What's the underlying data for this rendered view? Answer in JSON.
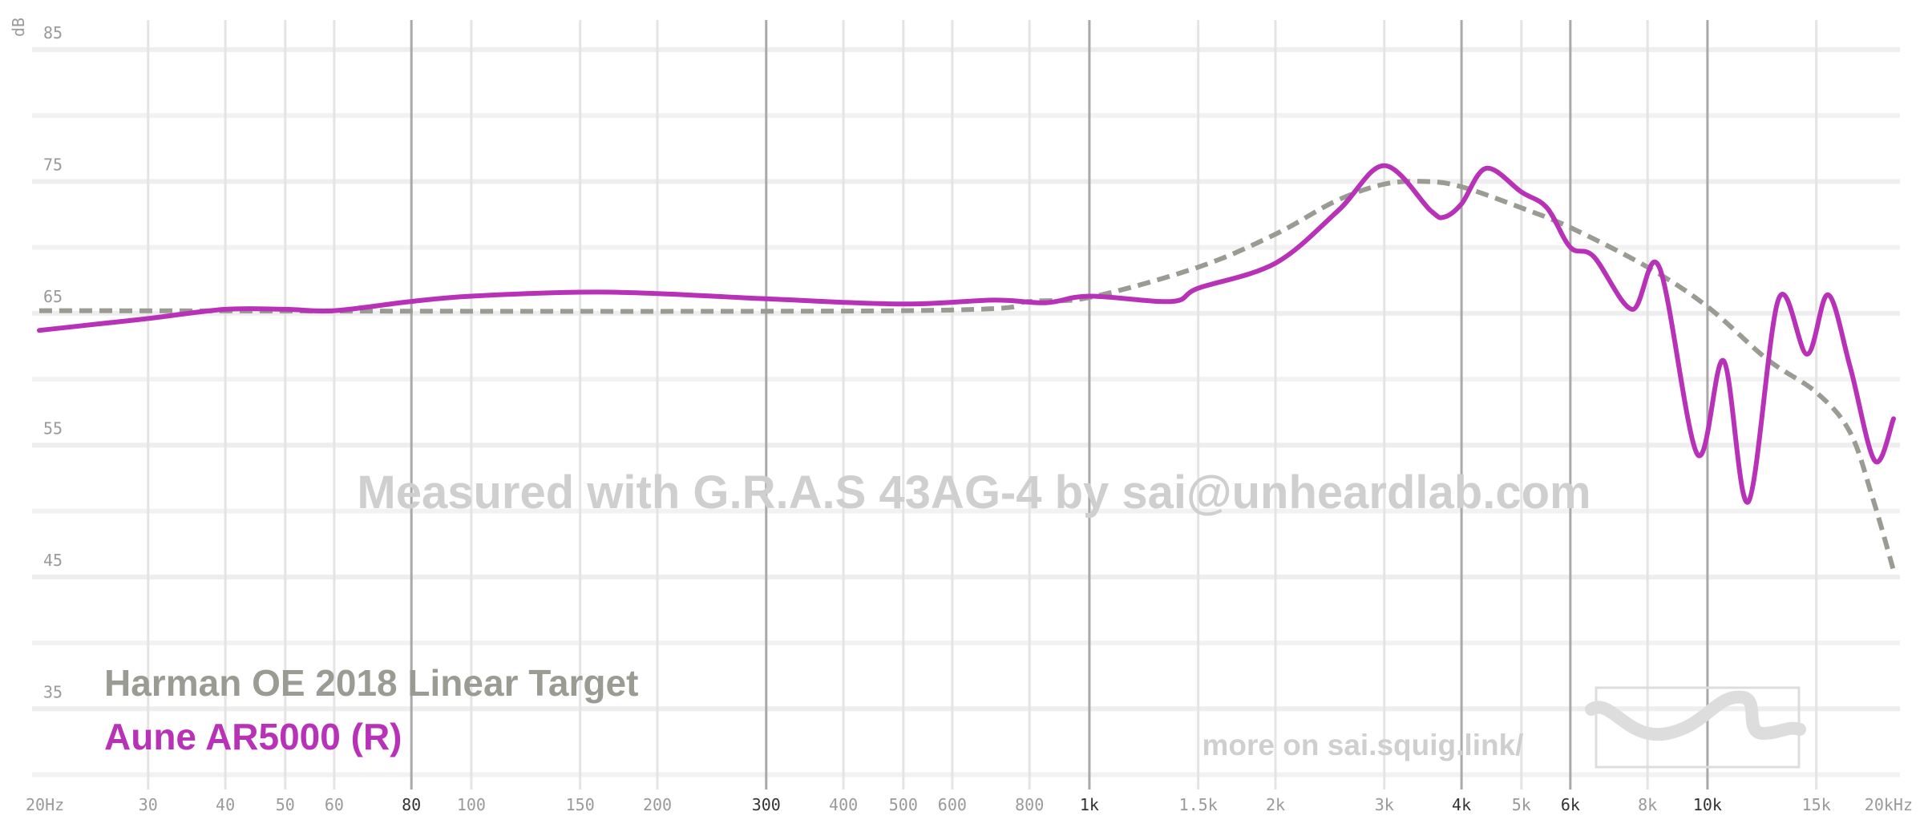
{
  "chart_data": {
    "type": "line",
    "y_label": "dB",
    "x_log": true,
    "xlim": [
      20,
      20000
    ],
    "ylim": [
      29,
      87
    ],
    "yticks": [
      85,
      75,
      65,
      55,
      45,
      35
    ],
    "yminor": [
      80,
      70,
      60,
      50,
      40,
      30
    ],
    "xticks": [
      {
        "value": 20,
        "label": "20Hz"
      },
      30,
      40,
      50,
      60,
      80,
      100,
      150,
      200,
      300,
      400,
      500,
      600,
      800,
      {
        "value": 1000,
        "label": "1k"
      },
      {
        "value": 1500,
        "label": "1.5k"
      },
      {
        "value": 2000,
        "label": "2k"
      },
      {
        "value": 3000,
        "label": "3k"
      },
      {
        "value": 4000,
        "label": "4k"
      },
      {
        "value": 5000,
        "label": "5k"
      },
      {
        "value": 6000,
        "label": "6k"
      },
      {
        "value": 8000,
        "label": "8k"
      },
      {
        "value": 10000,
        "label": "10k"
      },
      {
        "value": 15000,
        "label": "15k"
      },
      {
        "value": 20000,
        "label": "20kHz"
      }
    ],
    "xticks_emphasis": [
      80,
      300,
      1000,
      4000,
      6000,
      10000
    ],
    "grid": true,
    "watermark": "Measured with G.R.A.S 43AG-4 by sai@unheardlab.com",
    "link_text": "more on sai.squig.link/",
    "series": [
      {
        "name": "Harman OE 2018 Linear Target",
        "color": "#9a9c94",
        "dashed": true,
        "x": [
          20,
          500,
          800,
          1000,
          1500,
          2000,
          2500,
          3000,
          3500,
          4000,
          5000,
          6000,
          8000,
          10000,
          12500,
          15000,
          17000,
          18500,
          20000
        ],
        "values": [
          65.2,
          65.2,
          65.9,
          66.2,
          68.5,
          71.0,
          73.5,
          74.8,
          75.0,
          74.6,
          73.0,
          71.5,
          68.5,
          65.5,
          61.5,
          59.0,
          56.0,
          51.0,
          45.5
        ]
      },
      {
        "name": "Aune AR5000 (R)",
        "color": "#b832b8",
        "dashed": false,
        "x": [
          20,
          25,
          30,
          40,
          50,
          60,
          80,
          100,
          150,
          200,
          300,
          500,
          700,
          850,
          1000,
          1358,
          1500,
          2000,
          2528,
          3000,
          3564,
          3750,
          4000,
          4386,
          5000,
          5500,
          6000,
          6546,
          7552,
          8357,
          9634,
          10618,
          11640,
          13037,
          14495,
          15672,
          17022,
          18663,
          20000
        ],
        "values": [
          63.7,
          64.2,
          64.6,
          65.3,
          65.3,
          65.2,
          65.9,
          66.3,
          66.6,
          66.5,
          66.1,
          65.7,
          66.0,
          65.8,
          66.3,
          65.9,
          66.9,
          68.8,
          72.8,
          76.2,
          72.8,
          72.3,
          73.3,
          76.0,
          74.2,
          73.0,
          70.0,
          69.3,
          65.3,
          68.5,
          54.3,
          61.4,
          50.7,
          66.1,
          61.9,
          66.4,
          60.9,
          53.8,
          57.0
        ]
      }
    ]
  }
}
